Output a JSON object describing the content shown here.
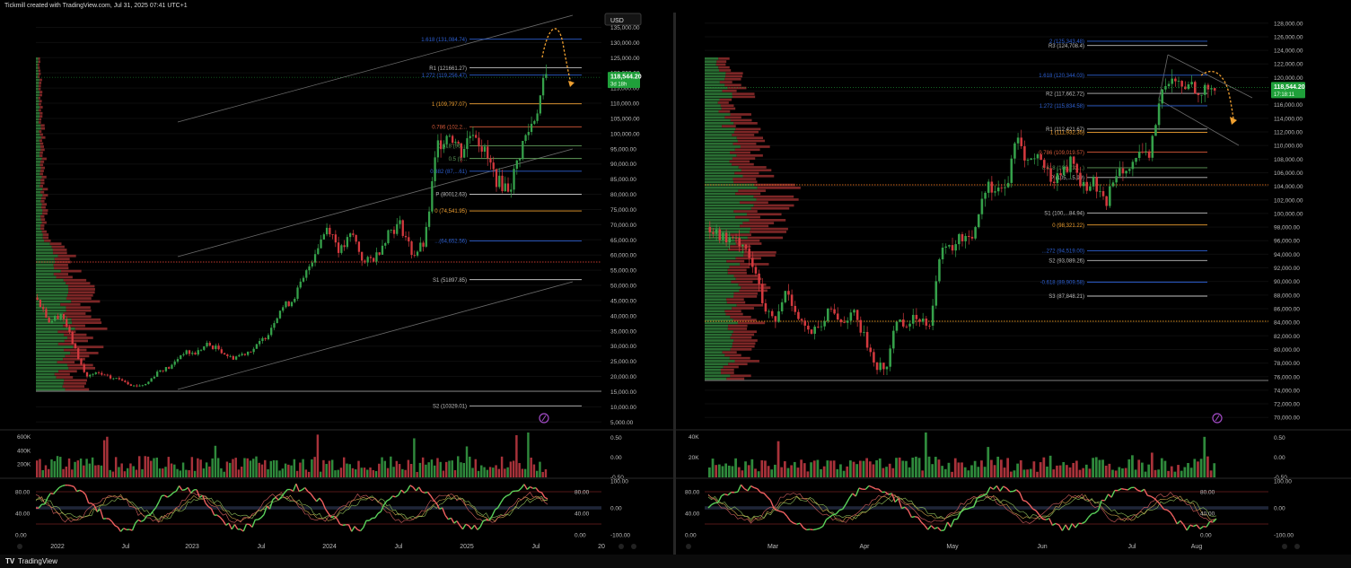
{
  "header": {
    "credit": "Tickmill created with TradingView.com, Jul 31, 2025 07:41 UTC+1"
  },
  "footer": {
    "brand": "TradingView",
    "logo": "TV"
  },
  "colors": {
    "bull": "#35a14a",
    "bear": "#d3393e",
    "fib": "#2d5fd0",
    "fib_orange": "#f0a030",
    "price_badge": "#1fa03a",
    "poc": "#c0392b",
    "poc_right": "#d48a1c"
  },
  "chart_data": [
    {
      "type": "candlestick",
      "currency_button": "USD",
      "x_labels": [
        "2022",
        "Jul",
        "2023",
        "Jul",
        "2024",
        "Jul",
        "2025",
        "Jul",
        "20"
      ],
      "y_ticks": [
        "135,000.00",
        "130,000.00",
        "125,000.00",
        "120,000.00",
        "115,000.00",
        "110,000.00",
        "105,000.00",
        "100,000.00",
        "95,000.00",
        "90,000.00",
        "85,000.00",
        "80,000.00",
        "75,000.00",
        "70,000.00",
        "65,000.00",
        "60,000.00",
        "55,000.00",
        "50,000.00",
        "45,000.00",
        "40,000.00",
        "35,000.00",
        "30,000.00",
        "25,000.00",
        "20,000.00",
        "15,000.00",
        "10,000.00",
        "5,000.00"
      ],
      "ylim": [
        4500,
        137500
      ],
      "last_price": "118,544.20",
      "countdown": "3d 18h",
      "levels": [
        {
          "label": "1.618 (131,084.74)",
          "value": 131084.74,
          "kind": "fib"
        },
        {
          "label": "R1 (121661.27)",
          "value": 121661.27,
          "kind": "pivot"
        },
        {
          "label": "1.272 (119,256.47)",
          "value": 119256.47,
          "kind": "fib"
        },
        {
          "label": "1 (109,797.07)",
          "value": 109797.07,
          "kind": "fib_orange"
        },
        {
          "label": "0.786 (102,2...",
          "value": 102250,
          "kind": "fib_red"
        },
        {
          "label": "0.618 (96,...",
          "value": 96000,
          "kind": "fib_green"
        },
        {
          "label": "0.5 (9...",
          "value": 91800,
          "kind": "fib_green"
        },
        {
          "label": "0.382 (87,...61)",
          "value": 87600,
          "kind": "fib"
        },
        {
          "label": "P (80012.63)",
          "value": 80012.63,
          "kind": "pivot"
        },
        {
          "label": "0 (74,541.95)",
          "value": 74541.95,
          "kind": "fib_orange"
        },
        {
          "label": "...(64,652.56)",
          "value": 64652.56,
          "kind": "fib"
        },
        {
          "label": "S1 (51897.85)",
          "value": 51897.85,
          "kind": "pivot"
        },
        {
          "label": "S2 (10329.01)",
          "value": 10329.01,
          "kind": "pivot"
        }
      ],
      "volume_ticks": [
        "600K",
        "400K",
        "200K"
      ],
      "osc_ticks_left": [
        "80.00",
        "40.00",
        "0.00"
      ],
      "osc_ticks_right_top": [
        "0.50",
        "0.00",
        "-0.50"
      ],
      "osc_ticks_right_bottom": [
        "100.00",
        "0.00",
        "-100.00"
      ],
      "close_path": [
        46000,
        38000,
        41000,
        30000,
        20000,
        21000,
        19500,
        19000,
        16800,
        17500,
        22000,
        23000,
        28000,
        27500,
        30500,
        29000,
        26000,
        27500,
        29500,
        34000,
        42000,
        45000,
        52000,
        62000,
        70000,
        61000,
        67000,
        57000,
        60000,
        68000,
        70000,
        60000,
        64000,
        96000,
        101000,
        94000,
        102000,
        93000,
        84000,
        82000,
        96000,
        105000,
        118500
      ]
    },
    {
      "type": "candlestick",
      "x_labels": [
        "Mar",
        "Apr",
        "May",
        "Jun",
        "Jul",
        "Aug"
      ],
      "y_ticks": [
        "128,000.00",
        "126,000.00",
        "124,000.00",
        "122,000.00",
        "120,000.00",
        "118,000.00",
        "116,000.00",
        "114,000.00",
        "112,000.00",
        "110,000.00",
        "108,000.00",
        "106,000.00",
        "104,000.00",
        "102,000.00",
        "100,000.00",
        "98,000.00",
        "96,000.00",
        "94,000.00",
        "92,000.00",
        "90,000.00",
        "88,000.00",
        "86,000.00",
        "84,000.00",
        "82,000.00",
        "80,000.00",
        "78,000.00",
        "76,000.00",
        "74,000.00",
        "72,000.00",
        "70,000.00"
      ],
      "ylim": [
        69500,
        128500
      ],
      "last_price": "118,544.20",
      "countdown": "17:18:11",
      "levels": [
        {
          "label": "2 (125,343.48)",
          "value": 125343.48,
          "kind": "fib"
        },
        {
          "label": "R3 (124,708.4)",
          "value": 124708.4,
          "kind": "pivot"
        },
        {
          "label": "1.618 (120,344.03)",
          "value": 120344.03,
          "kind": "fib"
        },
        {
          "label": "R2 (117,662.72)",
          "value": 117662.72,
          "kind": "pivot"
        },
        {
          "label": "1.272 (115,834.58)",
          "value": 115834.58,
          "kind": "fib"
        },
        {
          "label": "R1 (112,421.67)",
          "value": 112421.67,
          "kind": "pivot"
        },
        {
          "label": "1 (111,932.35)",
          "value": 111932.35,
          "kind": "fib_orange"
        },
        {
          "label": "0.786 (109,019.57)",
          "value": 109019.57,
          "kind": "fib_red"
        },
        {
          "label": "0.618 (106,732...)",
          "value": 106732,
          "kind": "fib_green"
        },
        {
          "label": "P (105,...5.99)",
          "value": 105300,
          "kind": "pivot"
        },
        {
          "label": "S1 (100,...84.94)",
          "value": 100084.94,
          "kind": "pivot"
        },
        {
          "label": "0 (98,321.22)",
          "value": 98321.22,
          "kind": "fib_orange"
        },
        {
          "label": "...272 (94,519.00)",
          "value": 94519.0,
          "kind": "fib"
        },
        {
          "label": "S2 (93,089.26)",
          "value": 93089.26,
          "kind": "pivot"
        },
        {
          "label": "-0.618 (89,909.58)",
          "value": 89909.58,
          "kind": "fib"
        },
        {
          "label": "S3 (87,848.21)",
          "value": 87848.21,
          "kind": "pivot"
        }
      ],
      "volume_ticks": [
        "40K",
        "20K"
      ],
      "osc_ticks_left": [
        "80.00",
        "40.00",
        "0.00"
      ],
      "osc_ticks_right_top": [
        "0.50",
        "0.00",
        "-0.50"
      ],
      "osc_ticks_right_bottom": [
        "100.00",
        "0.00",
        "-100.00"
      ],
      "close_path": [
        98000,
        96500,
        95800,
        96000,
        92000,
        85500,
        84000,
        89000,
        85000,
        82500,
        82800,
        86000,
        84000,
        85500,
        82000,
        78000,
        76800,
        84500,
        83800,
        84800,
        84000,
        94000,
        95000,
        96500,
        97000,
        103800,
        104000,
        103500,
        111200,
        107500,
        108500,
        105000,
        106000,
        107800,
        103800,
        104500,
        101000,
        106500,
        107200,
        108000,
        108300,
        117000,
        119500,
        118500,
        119000,
        117800,
        118500
      ]
    }
  ]
}
